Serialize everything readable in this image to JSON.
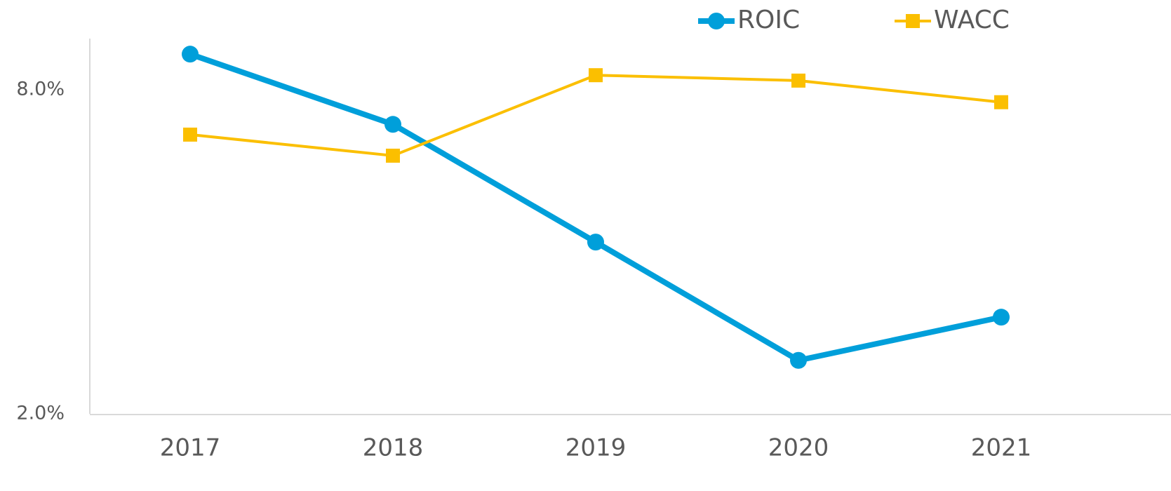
{
  "chart_data": {
    "type": "line",
    "categories": [
      "2017",
      "2018",
      "2019",
      "2020",
      "2021"
    ],
    "series": [
      {
        "name": "ROIC",
        "color": "#009fda",
        "marker": "circle",
        "values": [
          8.66,
          7.36,
          5.18,
          2.99,
          3.79
        ]
      },
      {
        "name": "WACC",
        "color": "#fbbf00",
        "marker": "square",
        "values": [
          7.17,
          6.78,
          8.27,
          8.17,
          7.77
        ]
      }
    ],
    "ylim": [
      2,
      9
    ],
    "yticks": [
      {
        "value": 2,
        "label": "2.0%"
      },
      {
        "value": 8,
        "label": "8.0%"
      }
    ],
    "grid": false,
    "legend": "top-right"
  }
}
